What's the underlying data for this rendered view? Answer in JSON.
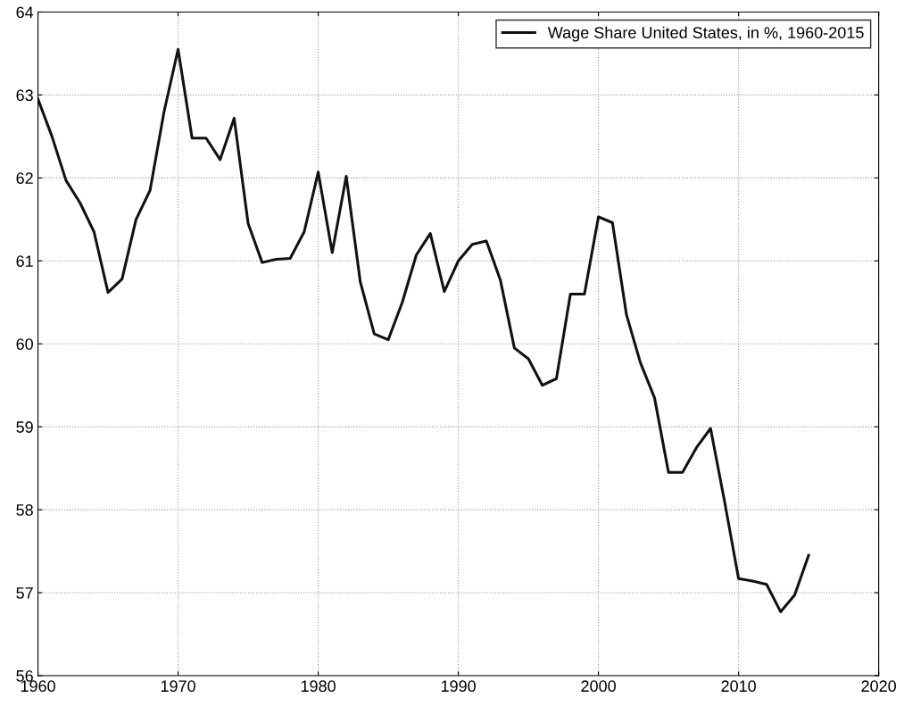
{
  "chart_data": {
    "type": "line",
    "x": [
      1960,
      1961,
      1962,
      1963,
      1964,
      1965,
      1966,
      1967,
      1968,
      1969,
      1970,
      1971,
      1972,
      1973,
      1974,
      1975,
      1976,
      1977,
      1978,
      1979,
      1980,
      1981,
      1982,
      1983,
      1984,
      1985,
      1986,
      1987,
      1988,
      1989,
      1990,
      1991,
      1992,
      1993,
      1994,
      1995,
      1996,
      1997,
      1998,
      1999,
      2000,
      2001,
      2002,
      2003,
      2004,
      2005,
      2006,
      2007,
      2008,
      2009,
      2010,
      2011,
      2012,
      2013,
      2014,
      2015
    ],
    "series": [
      {
        "name": "Wage Share United States, in %, 1960-2015",
        "color": "#111111",
        "values": [
          62.95,
          62.5,
          61.97,
          61.7,
          61.35,
          60.62,
          60.78,
          61.5,
          61.85,
          62.8,
          63.55,
          62.48,
          62.48,
          62.22,
          62.72,
          61.45,
          60.98,
          61.02,
          61.03,
          61.35,
          62.07,
          61.1,
          62.02,
          60.75,
          60.12,
          60.05,
          60.5,
          61.07,
          61.33,
          60.63,
          61.0,
          61.2,
          61.24,
          60.77,
          59.95,
          59.82,
          59.5,
          59.58,
          60.6,
          60.6,
          61.53,
          61.46,
          60.35,
          59.77,
          59.35,
          58.45,
          58.45,
          58.75,
          58.98,
          58.1,
          57.17,
          57.14,
          57.1,
          56.77,
          56.97,
          57.45
        ]
      }
    ],
    "xlim": [
      1960,
      2020
    ],
    "xticks": [
      1960,
      1970,
      1980,
      1990,
      2000,
      2010,
      2020
    ],
    "ylim": [
      56,
      64
    ],
    "yticks": [
      56,
      57,
      58,
      59,
      60,
      61,
      62,
      63,
      64
    ],
    "grid": true,
    "legend": "top right",
    "marker": "none",
    "line_style": "solid"
  }
}
